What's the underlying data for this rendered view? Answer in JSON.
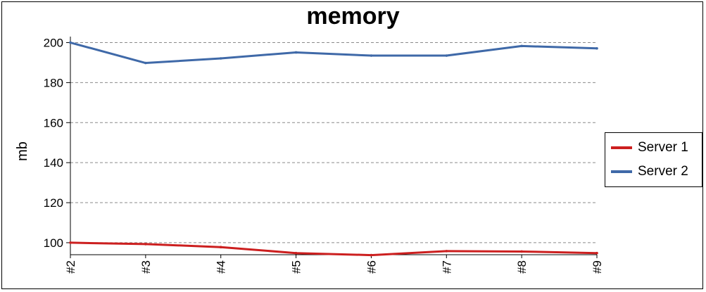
{
  "chart_data": {
    "type": "line",
    "title": "memory",
    "xlabel": "",
    "ylabel": "mb",
    "categories": [
      "#2",
      "#3",
      "#4",
      "#5",
      "#6",
      "#7",
      "#8",
      "#9"
    ],
    "ylim": [
      94,
      203
    ],
    "yticks": [
      100,
      120,
      140,
      160,
      180,
      200
    ],
    "grid": true,
    "legend_position": "right",
    "series": [
      {
        "name": "Server 1",
        "color": "#cc1f1f",
        "values": [
          100,
          99.3,
          97.8,
          94.8,
          93.8,
          95.8,
          95.6,
          94.8
        ]
      },
      {
        "name": "Server 2",
        "color": "#3f69a8",
        "values": [
          200,
          189.8,
          192.1,
          195.1,
          193.5,
          193.5,
          198.3,
          197.1
        ]
      }
    ]
  }
}
